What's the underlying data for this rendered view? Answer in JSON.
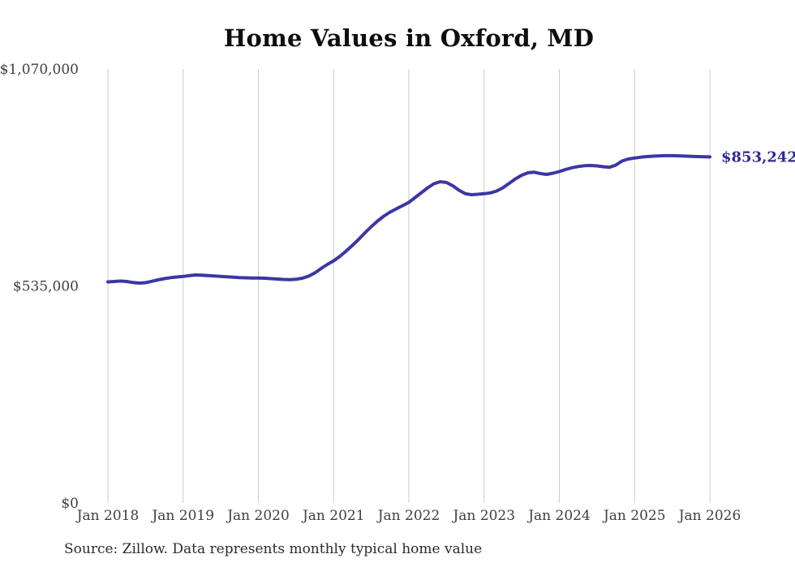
{
  "chart": {
    "title": "Home Values in Oxford, MD",
    "source": "Source: Zillow. Data represents monthly typical home value",
    "end_label": "$853,242"
  },
  "chart_data": {
    "type": "line",
    "title": "Home Values in Oxford, MD",
    "xlabel": "",
    "ylabel": "",
    "ylim": [
      0,
      1070000
    ],
    "grid": "vertical-year-gridlines-only",
    "legend": "none",
    "y_ticks": [
      {
        "value": 0,
        "label": "$0"
      },
      {
        "value": 535000,
        "label": "$535,000"
      },
      {
        "value": 1070000,
        "label": "$1,070,000"
      }
    ],
    "x_tick_labels": [
      "Jan 2018",
      "Jan 2019",
      "Jan 2020",
      "Jan 2021",
      "Jan 2022",
      "Jan 2023",
      "Jan 2024",
      "Jan 2025",
      "Jan 2026"
    ],
    "months_per_tick": 12,
    "final_value": 853242,
    "final_value_label": "$853,242",
    "colors": {
      "line": "#3c36a6",
      "end_label": "#2d2b92",
      "grid": "#cccccc",
      "tick_text": "#3f3f3f",
      "title_text": "#0d0d0d"
    },
    "x_months": [
      "2018-01",
      "2018-02",
      "2018-03",
      "2018-04",
      "2018-05",
      "2018-06",
      "2018-07",
      "2018-08",
      "2018-09",
      "2018-10",
      "2018-11",
      "2018-12",
      "2019-01",
      "2019-02",
      "2019-03",
      "2019-04",
      "2019-05",
      "2019-06",
      "2019-07",
      "2019-08",
      "2019-09",
      "2019-10",
      "2019-11",
      "2019-12",
      "2020-01",
      "2020-02",
      "2020-03",
      "2020-04",
      "2020-05",
      "2020-06",
      "2020-07",
      "2020-08",
      "2020-09",
      "2020-10",
      "2020-11",
      "2020-12",
      "2021-01",
      "2021-02",
      "2021-03",
      "2021-04",
      "2021-05",
      "2021-06",
      "2021-07",
      "2021-08",
      "2021-09",
      "2021-10",
      "2021-11",
      "2021-12",
      "2022-01",
      "2022-02",
      "2022-03",
      "2022-04",
      "2022-05",
      "2022-06",
      "2022-07",
      "2022-08",
      "2022-09",
      "2022-10",
      "2022-11",
      "2022-12",
      "2023-01",
      "2023-02",
      "2023-03",
      "2023-04",
      "2023-05",
      "2023-06",
      "2023-07",
      "2023-08",
      "2023-09",
      "2023-10",
      "2023-11",
      "2023-12",
      "2024-01",
      "2024-02",
      "2024-03",
      "2024-04",
      "2024-05",
      "2024-06",
      "2024-07",
      "2024-08",
      "2024-09",
      "2024-10",
      "2024-11",
      "2024-12",
      "2025-01",
      "2025-02",
      "2025-03",
      "2025-04",
      "2025-05",
      "2025-06",
      "2025-07",
      "2025-08",
      "2025-09",
      "2025-10",
      "2025-11",
      "2025-12",
      "2026-01"
    ],
    "series": [
      {
        "name": "Monthly typical home value",
        "color": "#3c36a6",
        "values": [
          545000,
          546000,
          547000,
          546000,
          543500,
          542000,
          543000,
          546500,
          550000,
          553000,
          555500,
          557000,
          558500,
          560500,
          562000,
          561500,
          560500,
          559500,
          558500,
          557500,
          556500,
          555500,
          555000,
          554500,
          554500,
          554000,
          553000,
          552000,
          551000,
          550500,
          551500,
          554000,
          559000,
          567000,
          578000,
          588000,
          597000,
          608000,
          621000,
          635000,
          650000,
          666000,
          681000,
          695000,
          707000,
          717000,
          725000,
          733000,
          741000,
          753000,
          765000,
          777000,
          787000,
          792000,
          790000,
          782000,
          771000,
          762500,
          760000,
          761000,
          762500,
          764500,
          769000,
          777000,
          788000,
          799000,
          808000,
          814000,
          815500,
          812000,
          810000,
          813000,
          817000,
          822000,
          826500,
          829500,
          831500,
          832000,
          831000,
          829000,
          827500,
          833000,
          843000,
          848000,
          850500,
          852500,
          854000,
          855000,
          855800,
          856200,
          856200,
          855800,
          855200,
          854600,
          854000,
          853600,
          853242
        ]
      }
    ]
  }
}
